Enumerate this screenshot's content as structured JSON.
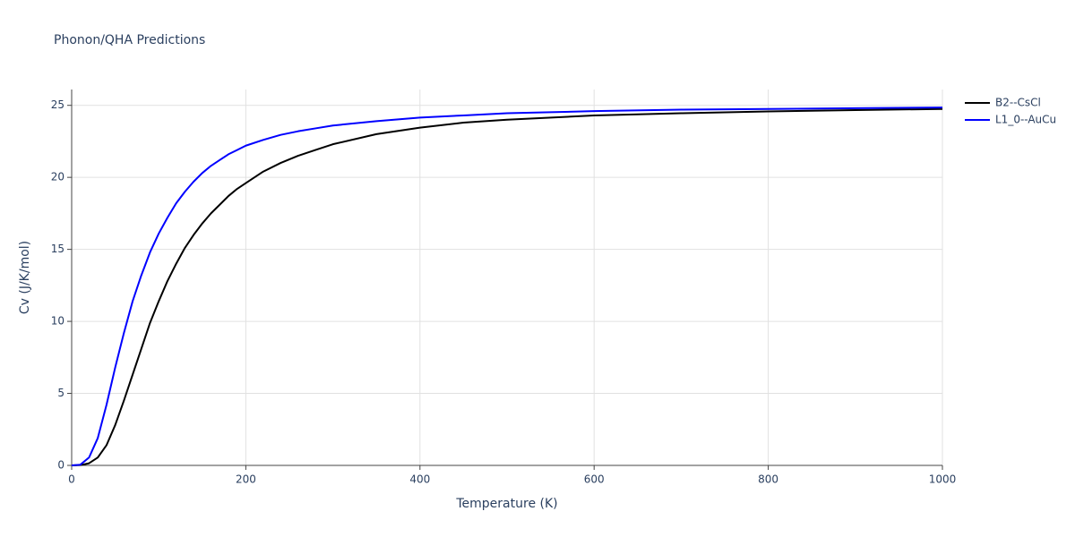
{
  "chart_data": {
    "type": "line",
    "title": "Phonon/QHA Predictions",
    "x_label": "Temperature (K)",
    "y_label": "Cv (J/K/mol)",
    "x": [
      0,
      10,
      20,
      30,
      40,
      50,
      60,
      70,
      80,
      90,
      100,
      110,
      120,
      130,
      140,
      150,
      160,
      170,
      180,
      190,
      200,
      220,
      240,
      260,
      280,
      300,
      350,
      400,
      450,
      500,
      600,
      700,
      800,
      900,
      1000
    ],
    "series": [
      {
        "name": "B2--CsCl",
        "color": "#000000",
        "values": [
          0,
          0.02,
          0.15,
          0.55,
          1.4,
          2.8,
          4.5,
          6.3,
          8.1,
          9.9,
          11.4,
          12.8,
          14.0,
          15.1,
          16.0,
          16.8,
          17.5,
          18.1,
          18.7,
          19.2,
          19.6,
          20.4,
          21.0,
          21.5,
          21.9,
          22.3,
          23.0,
          23.45,
          23.8,
          24.0,
          24.3,
          24.45,
          24.58,
          24.67,
          24.75
        ]
      },
      {
        "name": "L1_0--AuCu",
        "color": "#0000ff",
        "values": [
          0,
          0.05,
          0.55,
          1.9,
          4.2,
          6.8,
          9.2,
          11.4,
          13.2,
          14.8,
          16.1,
          17.2,
          18.2,
          19.0,
          19.7,
          20.3,
          20.8,
          21.2,
          21.6,
          21.9,
          22.2,
          22.6,
          22.95,
          23.2,
          23.4,
          23.6,
          23.9,
          24.15,
          24.3,
          24.45,
          24.6,
          24.7,
          24.75,
          24.8,
          24.85
        ]
      }
    ],
    "xlim": [
      0,
      1000
    ],
    "xticks": [
      0,
      200,
      400,
      600,
      800,
      1000
    ],
    "ylim": [
      0,
      26.1
    ],
    "yticks": [
      0,
      5,
      10,
      15,
      20,
      25
    ],
    "grid": true,
    "legend": "outside-right"
  }
}
